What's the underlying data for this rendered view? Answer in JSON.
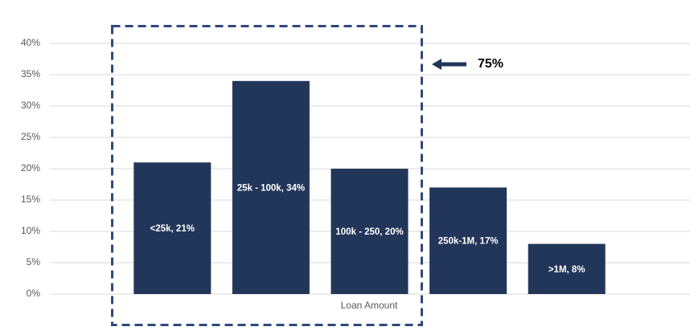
{
  "chart_data": {
    "type": "bar",
    "values": [
      21,
      34,
      20,
      17,
      8
    ],
    "value_labels": [
      "<25k, 21%",
      "25k - 100k, 34%",
      "100k - 250, 20%",
      "250k-1M, 17%",
      ">1M, 8%"
    ],
    "color": "#22365a",
    "x_label": "Loan Amount",
    "annotation": "75%",
    "ylim": [
      0,
      40
    ],
    "yticks": [
      {
        "value": 0,
        "label": "0%"
      },
      {
        "value": 5,
        "label": "5%"
      },
      {
        "value": 10,
        "label": "10%"
      },
      {
        "value": 15,
        "label": "15%"
      },
      {
        "value": 20,
        "label": "20%"
      },
      {
        "value": 25,
        "label": "25%"
      },
      {
        "value": 30,
        "label": "30%"
      },
      {
        "value": 35,
        "label": "35%"
      },
      {
        "value": 40,
        "label": "40%"
      }
    ],
    "grid": true
  }
}
